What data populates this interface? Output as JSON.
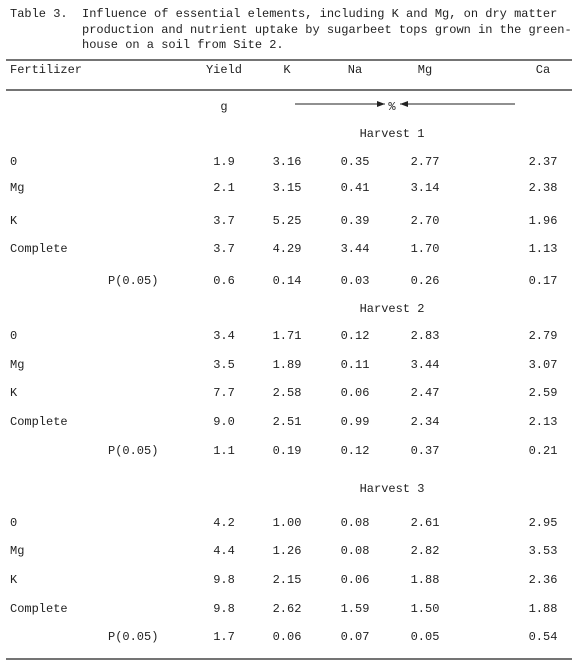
{
  "caption": {
    "label": "Table 3.",
    "lines": [
      "Influence of essential elements, including K and Mg, on dry matter",
      "production and nutrient uptake by sugarbeet tops grown in the green-",
      "house on a soil from Site 2."
    ]
  },
  "table": {
    "columns": [
      "Fertilizer",
      "Yield",
      "K",
      "Na",
      "Mg",
      "Ca"
    ],
    "units": {
      "yield": "g",
      "percent": "%"
    },
    "sections": [
      {
        "title": "Harvest 1",
        "rows": [
          [
            "0",
            "1.9",
            "3.16",
            "0.35",
            "2.77",
            "2.37"
          ],
          [
            "Mg",
            "2.1",
            "3.15",
            "0.41",
            "3.14",
            "2.38"
          ],
          [
            "K",
            "3.7",
            "5.25",
            "0.39",
            "2.70",
            "1.96"
          ],
          [
            "Complete",
            "3.7",
            "4.29",
            "3.44",
            "1.70",
            "1.13"
          ],
          [
            "P(0.05)",
            "0.6",
            "0.14",
            "0.03",
            "0.26",
            "0.17"
          ]
        ]
      },
      {
        "title": "Harvest 2",
        "rows": [
          [
            "0",
            "3.4",
            "1.71",
            "0.12",
            "2.83",
            "2.79"
          ],
          [
            "Mg",
            "3.5",
            "1.89",
            "0.11",
            "3.44",
            "3.07"
          ],
          [
            "K",
            "7.7",
            "2.58",
            "0.06",
            "2.47",
            "2.59"
          ],
          [
            "Complete",
            "9.0",
            "2.51",
            "0.99",
            "2.34",
            "2.13"
          ],
          [
            "P(0.05)",
            "1.1",
            "0.19",
            "0.12",
            "0.37",
            "0.21"
          ]
        ]
      },
      {
        "title": "Harvest 3",
        "rows": [
          [
            "0",
            "4.2",
            "1.00",
            "0.08",
            "2.61",
            "2.95"
          ],
          [
            "Mg",
            "4.4",
            "1.26",
            "0.08",
            "2.82",
            "3.53"
          ],
          [
            "K",
            "9.8",
            "2.15",
            "0.06",
            "1.88",
            "2.36"
          ],
          [
            "Complete",
            "9.8",
            "2.62",
            "1.59",
            "1.50",
            "1.88"
          ],
          [
            "P(0.05)",
            "1.7",
            "0.06",
            "0.07",
            "0.05",
            "0.54"
          ]
        ]
      }
    ]
  }
}
